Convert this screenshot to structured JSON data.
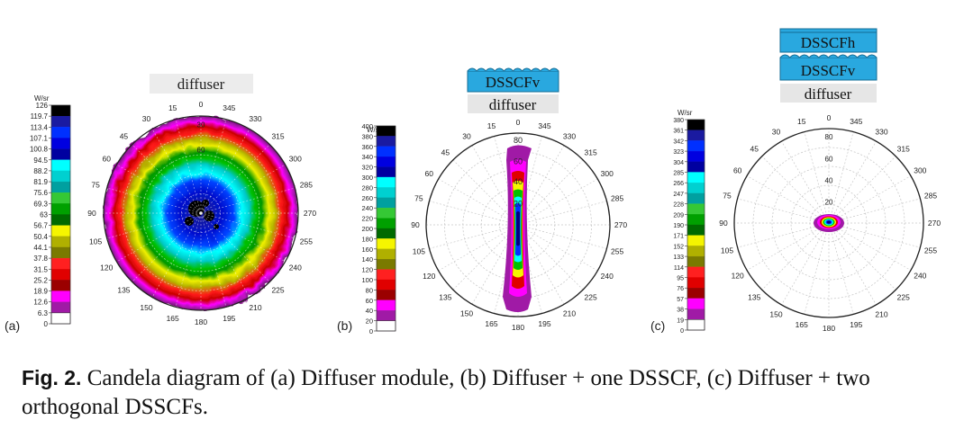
{
  "palette": [
    "#ffffff",
    "#7a0a7a",
    "#a01aa6",
    "#ff00ff",
    "#9b0000",
    "#e00000",
    "#ff2020",
    "#7a7a00",
    "#b0b000",
    "#f5f500",
    "#006a00",
    "#00a000",
    "#35c835",
    "#00a0a0",
    "#00d0d0",
    "#00ffff",
    "#0000a0",
    "#0000e0",
    "#0030ff",
    "#1a1aa0",
    "#000000"
  ],
  "panels": [
    {
      "id": "a",
      "panel_label": "(a)",
      "unit": "W/sr",
      "scale_ticks": [
        "126",
        "119.7",
        "113.4",
        "107.1",
        "100.8",
        "94.5",
        "88.2",
        "81.9",
        "75.6",
        "69.3",
        "63",
        "56.7",
        "50.4",
        "44.1",
        "37.8",
        "31.5",
        "25.2",
        "18.9",
        "12.6",
        "6.3",
        "0"
      ],
      "angle_labels": [
        "0",
        "15",
        "30",
        "45",
        "60",
        "75",
        "90",
        "105",
        "120",
        "135",
        "150",
        "165",
        "180",
        "195",
        "210",
        "225",
        "240",
        "255",
        "270",
        "285",
        "300",
        "315",
        "330",
        "345"
      ],
      "radial_labels": [
        "60",
        "30"
      ],
      "layers": [
        {
          "text": "diffuser",
          "style": "gray"
        }
      ]
    },
    {
      "id": "b",
      "panel_label": "(b)",
      "unit": "W/sr",
      "scale_ticks": [
        "400",
        "380",
        "360",
        "340",
        "320",
        "300",
        "280",
        "260",
        "240",
        "220",
        "200",
        "180",
        "160",
        "140",
        "120",
        "100",
        "80",
        "60",
        "40",
        "20",
        "0"
      ],
      "angle_labels": [
        "0",
        "15",
        "30",
        "45",
        "60",
        "75",
        "90",
        "105",
        "120",
        "135",
        "150",
        "165",
        "180",
        "195",
        "210",
        "225",
        "240",
        "255",
        "270",
        "285",
        "300",
        "315",
        "330",
        "345"
      ],
      "radial_labels": [
        "80",
        "60",
        "40",
        "20"
      ],
      "layers": [
        {
          "text": "DSSCFv",
          "style": "blue"
        },
        {
          "text": "diffuser",
          "style": "gray"
        }
      ]
    },
    {
      "id": "c",
      "panel_label": "(c)",
      "unit": "W/sr",
      "scale_ticks": [
        "380",
        "361",
        "342",
        "323",
        "304",
        "285",
        "266",
        "247",
        "228",
        "209",
        "190",
        "171",
        "152",
        "133",
        "114",
        "95",
        "76",
        "57",
        "38",
        "19",
        "0"
      ],
      "angle_labels": [
        "0",
        "15",
        "30",
        "45",
        "60",
        "75",
        "90",
        "105",
        "120",
        "135",
        "150",
        "165",
        "180",
        "195",
        "210",
        "225",
        "240",
        "255",
        "270",
        "285",
        "300",
        "315",
        "330",
        "345"
      ],
      "radial_labels": [
        "80",
        "60",
        "40",
        "20"
      ],
      "layers": [
        {
          "text": "DSSCFh",
          "style": "blue-flat"
        },
        {
          "text": "DSSCFv",
          "style": "blue"
        },
        {
          "text": "diffuser",
          "style": "gray"
        }
      ]
    }
  ],
  "caption": {
    "label": "Fig. 2.",
    "text": "Candela diagram of (a) Diffuser module, (b) Diffuser + one DSSCF, (c) Diffuser + two orthogonal DSSCFs."
  }
}
